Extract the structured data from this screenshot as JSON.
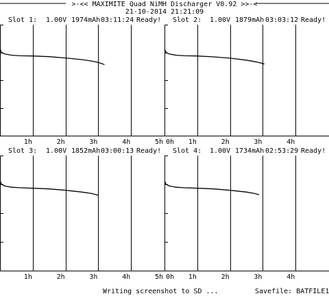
{
  "header": {
    "title": ">-<< MAXIMITE Quad NiMH Discharger V0.92 >>-<",
    "datetime": "21-10-2014 21:21:09"
  },
  "slots": [
    {
      "label": "Slot 1:",
      "voltage": "1.00V",
      "capacity": "1974mAh",
      "time": "03:11:24",
      "status": "Ready!"
    },
    {
      "label": "Slot 2:",
      "voltage": "1.00V",
      "capacity": "1879mAh",
      "time": "03:03:12",
      "status": "Ready!"
    },
    {
      "label": "Slot 3:",
      "voltage": "1.00V",
      "capacity": "1852mAh",
      "time": "03:00:13",
      "status": "Ready!"
    },
    {
      "label": "Slot 4:",
      "voltage": "1.00V",
      "capacity": "1734mAh",
      "time": "02:53:29",
      "status": "Ready!"
    }
  ],
  "footer": {
    "status": "Writing screenshot to SD ...",
    "savefile": "Savefile: BATFILE1"
  },
  "chart_data": [
    {
      "type": "line",
      "series": [
        {
          "x": [
            0.0,
            0.05,
            0.15,
            0.35,
            0.6,
            1.0,
            1.5,
            2.0,
            2.5,
            2.8,
            3.0,
            3.1,
            3.19
          ],
          "y": [
            0.78,
            0.75,
            0.735,
            0.725,
            0.72,
            0.718,
            0.712,
            0.7,
            0.685,
            0.672,
            0.66,
            0.65,
            0.64
          ]
        }
      ],
      "xticks": [
        "1h",
        "2h",
        "3h",
        "4h",
        "5h"
      ],
      "xlim": [
        0,
        5
      ],
      "ylim": [
        0,
        1
      ]
    },
    {
      "type": "line",
      "series": [
        {
          "x": [
            0.0,
            0.05,
            0.15,
            0.35,
            0.6,
            1.0,
            1.5,
            2.0,
            2.5,
            2.8,
            3.0,
            3.05
          ],
          "y": [
            0.78,
            0.75,
            0.735,
            0.725,
            0.72,
            0.718,
            0.71,
            0.698,
            0.68,
            0.665,
            0.65,
            0.645
          ]
        }
      ],
      "xticks": [
        "0h",
        "1h",
        "2h",
        "3h",
        "4h"
      ],
      "xlim": [
        0,
        5
      ],
      "ylim": [
        0,
        1
      ]
    },
    {
      "type": "line",
      "series": [
        {
          "x": [
            0.0,
            0.05,
            0.15,
            0.35,
            0.6,
            1.0,
            1.5,
            2.0,
            2.5,
            2.8,
            3.0
          ],
          "y": [
            0.78,
            0.75,
            0.735,
            0.725,
            0.72,
            0.716,
            0.71,
            0.698,
            0.683,
            0.67,
            0.655
          ]
        }
      ],
      "xticks": [
        "1h",
        "2h",
        "3h",
        "4h",
        "5h"
      ],
      "xlim": [
        0,
        5
      ],
      "ylim": [
        0,
        1
      ]
    },
    {
      "type": "line",
      "series": [
        {
          "x": [
            0.0,
            0.05,
            0.15,
            0.35,
            0.6,
            1.0,
            1.5,
            2.0,
            2.5,
            2.75,
            2.89
          ],
          "y": [
            0.78,
            0.75,
            0.735,
            0.725,
            0.72,
            0.716,
            0.71,
            0.698,
            0.683,
            0.67,
            0.66
          ]
        }
      ],
      "xticks": [
        "0h",
        "1h",
        "2h",
        "3h",
        "4h"
      ],
      "xlim": [
        0,
        5
      ],
      "ylim": [
        0,
        1
      ]
    }
  ]
}
